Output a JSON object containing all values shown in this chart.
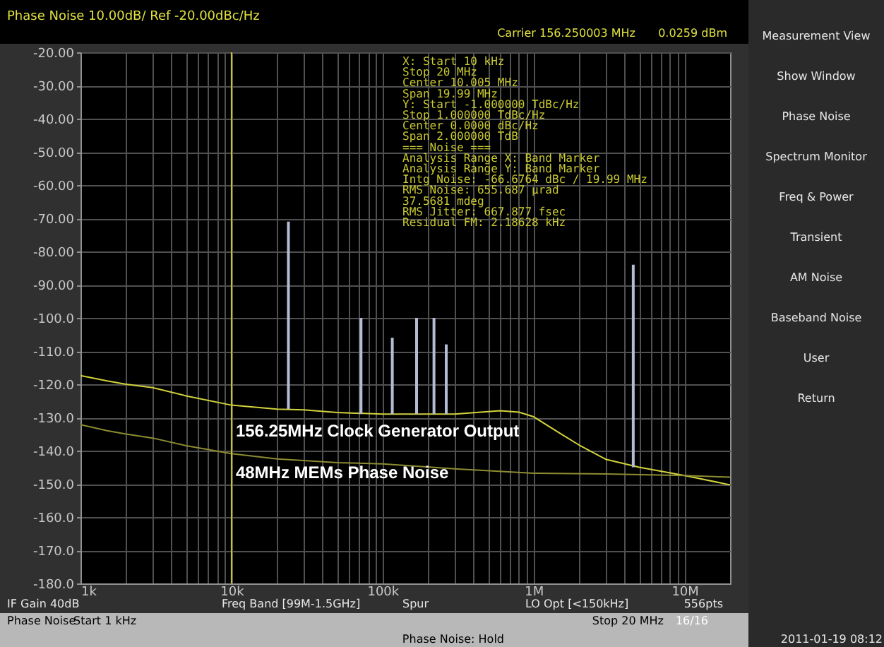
{
  "chart_data": {
    "type": "line",
    "title": "Phase Noise 10.00dB/ Ref -20.00dBc/Hz",
    "log": "x",
    "grid": true,
    "xlim": [
      1000,
      20000000
    ],
    "ylim": [
      -180,
      -20
    ],
    "xticks": [
      {
        "value": 1000,
        "label": "1k"
      },
      {
        "value": 2000,
        "label": null
      },
      {
        "value": 3000,
        "label": null
      },
      {
        "value": 4000,
        "label": null
      },
      {
        "value": 5000,
        "label": null
      },
      {
        "value": 6000,
        "label": null
      },
      {
        "value": 7000,
        "label": null
      },
      {
        "value": 8000,
        "label": null
      },
      {
        "value": 9000,
        "label": null
      },
      {
        "value": 10000,
        "label": "10k"
      },
      {
        "value": 20000,
        "label": null
      },
      {
        "value": 30000,
        "label": null
      },
      {
        "value": 40000,
        "label": null
      },
      {
        "value": 50000,
        "label": null
      },
      {
        "value": 60000,
        "label": null
      },
      {
        "value": 70000,
        "label": null
      },
      {
        "value": 80000,
        "label": null
      },
      {
        "value": 90000,
        "label": null
      },
      {
        "value": 100000,
        "label": "100k"
      },
      {
        "value": 200000,
        "label": null
      },
      {
        "value": 300000,
        "label": null
      },
      {
        "value": 400000,
        "label": null
      },
      {
        "value": 500000,
        "label": null
      },
      {
        "value": 600000,
        "label": null
      },
      {
        "value": 700000,
        "label": null
      },
      {
        "value": 800000,
        "label": null
      },
      {
        "value": 900000,
        "label": null
      },
      {
        "value": 1000000,
        "label": "1M"
      },
      {
        "value": 2000000,
        "label": null
      },
      {
        "value": 3000000,
        "label": null
      },
      {
        "value": 4000000,
        "label": null
      },
      {
        "value": 5000000,
        "label": null
      },
      {
        "value": 6000000,
        "label": null
      },
      {
        "value": 7000000,
        "label": null
      },
      {
        "value": 8000000,
        "label": null
      },
      {
        "value": 9000000,
        "label": null
      },
      {
        "value": 10000000,
        "label": "10M"
      }
    ],
    "yticks": [
      {
        "value": -20,
        "label": "-20.00"
      },
      {
        "value": -30,
        "label": "-30.00"
      },
      {
        "value": -40,
        "label": "-40.00"
      },
      {
        "value": -50,
        "label": "-50.00"
      },
      {
        "value": -60,
        "label": "-60.00"
      },
      {
        "value": -70,
        "label": "-70.00"
      },
      {
        "value": -80,
        "label": "-80.00"
      },
      {
        "value": -90,
        "label": "-90.00"
      },
      {
        "value": -100,
        "label": "-100.0"
      },
      {
        "value": -110,
        "label": "-110.0"
      },
      {
        "value": -120,
        "label": "-120.0"
      },
      {
        "value": -130,
        "label": "-130.0"
      },
      {
        "value": -140,
        "label": "-140.0"
      },
      {
        "value": -150,
        "label": "-150.0"
      },
      {
        "value": -160,
        "label": "-160.0"
      },
      {
        "value": -170,
        "label": "-170.0"
      },
      {
        "value": -180,
        "label": "-180.0"
      }
    ],
    "ref_lines": [
      {
        "axis": "x",
        "value": 10000,
        "color": "#c8c832"
      }
    ],
    "series": [
      {
        "color": "#d2d23c",
        "x": [
          1000,
          1500,
          2000,
          3000,
          5000,
          10000,
          20000,
          30000,
          50000,
          100000,
          300000,
          600000,
          800000,
          1000000,
          1500000,
          2000000,
          3000000,
          5000000,
          10000000,
          20000000
        ],
        "values": [
          -117.4,
          -119,
          -120,
          -121,
          -123.5,
          -126.3,
          -127.5,
          -127.7,
          -128.5,
          -129,
          -129,
          -128,
          -128.4,
          -129.8,
          -134.8,
          -138.3,
          -142.6,
          -145,
          -147.5,
          -150.3
        ]
      },
      {
        "color": "#8c8c32",
        "x": [
          1000,
          1500,
          2000,
          3000,
          5000,
          10000,
          20000,
          30000,
          50000,
          100000,
          300000,
          1000000,
          3000000,
          10000000,
          20000000
        ],
        "values": [
          -132.2,
          -134,
          -135,
          -136.2,
          -138.5,
          -140.9,
          -142.5,
          -143,
          -143.6,
          -144,
          -145.5,
          -146.8,
          -147,
          -147.5,
          -148
        ]
      },
      {
        "type": "bar",
        "color": "#b4bcd4",
        "x": [
          23800,
          72000,
          116000,
          168000,
          219000,
          264000,
          4570000
        ],
        "base": [
          -127.5,
          -129,
          -129,
          -129,
          -129,
          -129,
          -145
        ],
        "values": [
          56.5,
          29,
          23,
          29,
          29,
          21,
          61
        ]
      }
    ],
    "annotations": [
      "Carrier 156.250003 MHz",
      "0.0259 dBm",
      "X: Start 10 kHz\n   Stop 20 MHz\n Center 10.005 MHz\n   Span 19.99 MHz\nY: Start -1.000000 TdBc/Hz\n   Stop  1.000000 TdBc/Hz\n Center  0.0000 dBc/Hz\n   Span  2.000000 TdB\n=== Noise ===\nAnalysis Range X: Band Marker\nAnalysis Range Y: Band Marker\nIntg Noise: -66.6764 dBc / 19.99 MHz\n RMS Noise: 655.687 µrad\n           37.5681 mdeg\nRMS Jitter: 667.877 fsec\nResidual FM: 2.18628 kHz",
      {
        "text": "156.25MHz Clock Generator Output",
        "x": 10000,
        "y": -134
      },
      {
        "text": "48MHz MEMs Phase Noise",
        "x": 10000,
        "y": -146.5
      },
      "IF Gain 40dB",
      "Freq Band [99M-1.5GHz]",
      "Spur",
      "LO Opt [<150kHz]",
      "556pts",
      "Phase Noise",
      "Start 1 kHz",
      "Stop 20 MHz",
      "16/16",
      "Phase Noise: Hold",
      "2011-01-19 08:12",
      "Measurement View",
      "Show Window",
      "Phase Noise",
      "Spectrum Monitor",
      "Freq & Power",
      "Transient",
      "AM Noise",
      "Baseband Noise",
      "User",
      "Return"
    ]
  }
}
